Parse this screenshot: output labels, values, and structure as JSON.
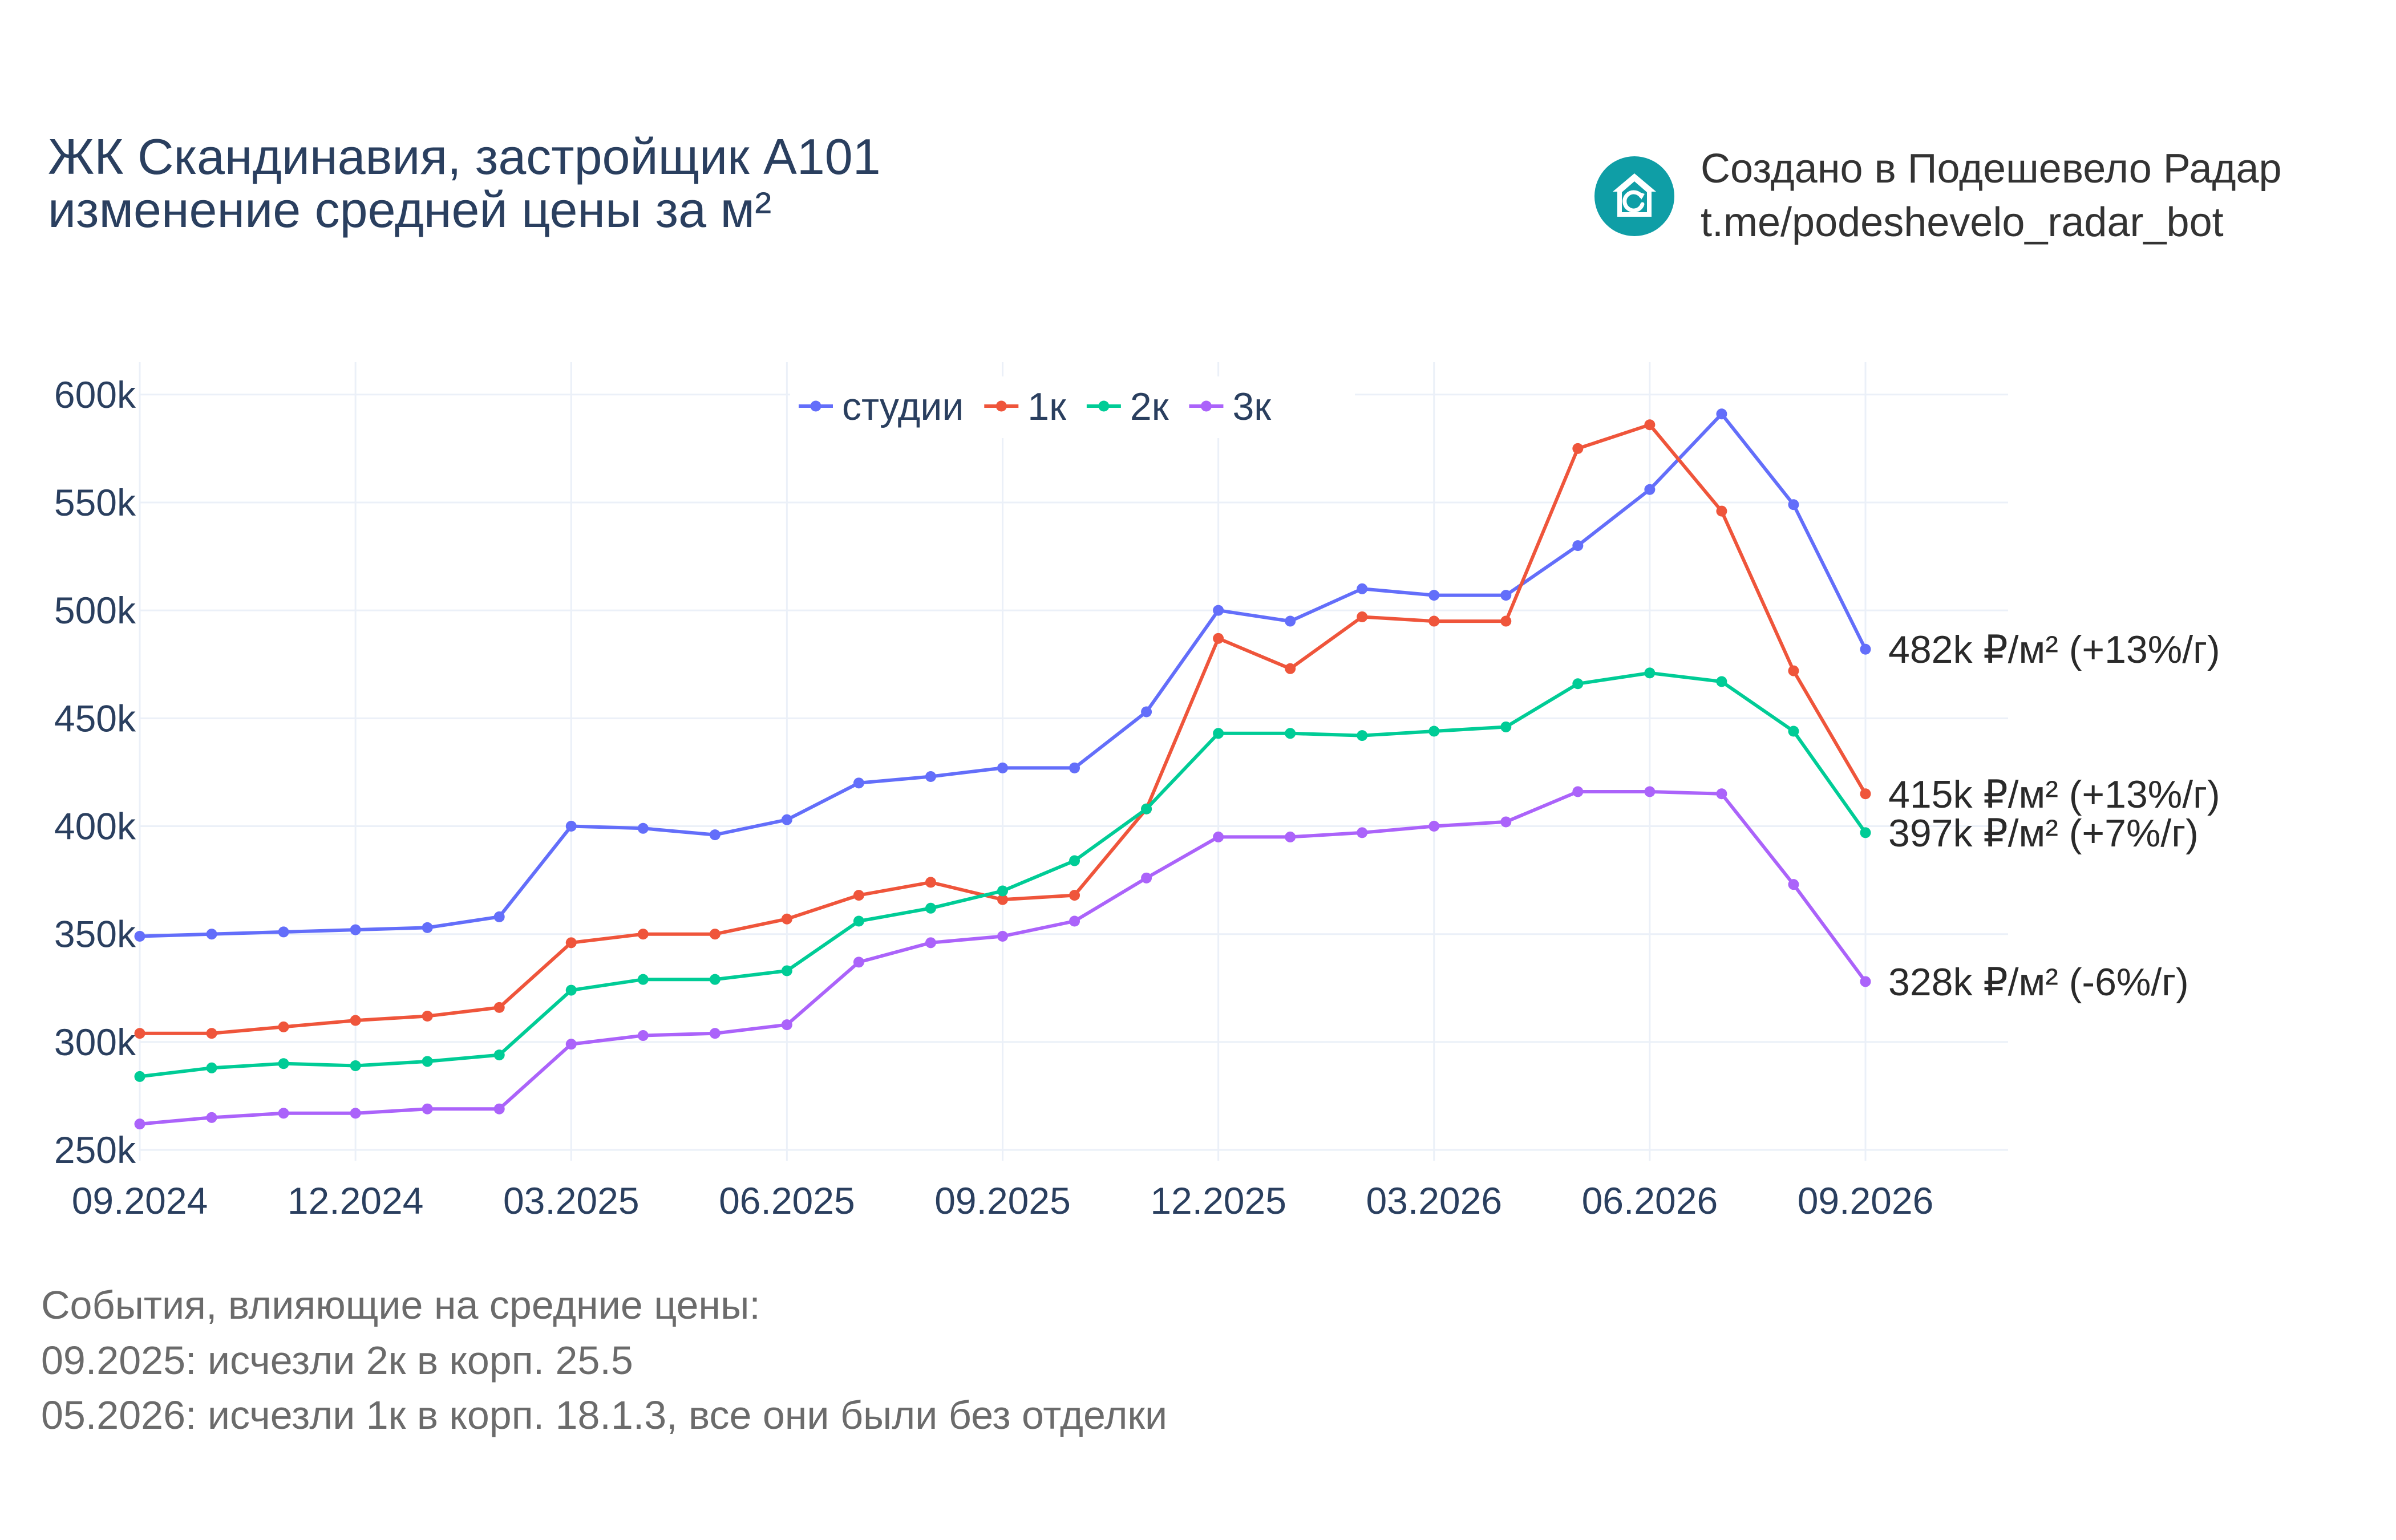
{
  "title": {
    "line1": "ЖК Скандинавия, застройщик А101",
    "line2": "изменение средней цены за м²"
  },
  "brand": {
    "icon": "house-refresh-icon",
    "line1": "Создано в Подешевело Радар",
    "line2": "t.me/podeshevelo_radar_bot",
    "color": "#0f9ea6"
  },
  "notes": {
    "heading": "События, влияющие на средние цены:",
    "items": [
      "09.2025: исчезли 2к в корп. 25.5",
      "05.2026: исчезли 1к в корп. 18.1.3, все они были без отделки"
    ]
  },
  "chart_data": {
    "type": "line",
    "x": [
      "09.2024",
      "10.2024",
      "11.2024",
      "12.2024",
      "01.2025",
      "02.2025",
      "03.2025",
      "04.2025",
      "05.2025",
      "06.2025",
      "07.2025",
      "08.2025",
      "09.2025",
      "10.2025",
      "11.2025",
      "12.2025",
      "01.2026",
      "02.2026",
      "03.2026",
      "04.2026",
      "05.2026",
      "06.2026",
      "07.2026",
      "08.2026",
      "09.2026"
    ],
    "x_ticks": [
      "09.2024",
      "12.2024",
      "03.2025",
      "06.2025",
      "09.2025",
      "12.2025",
      "03.2026",
      "06.2026",
      "09.2026"
    ],
    "y_ticks": [
      "250k",
      "300k",
      "350k",
      "400k",
      "450k",
      "500k",
      "550k",
      "600k"
    ],
    "ylim": [
      245000,
      615000
    ],
    "grid": true,
    "legend_position": "top-center",
    "series": [
      {
        "name": "студии",
        "color": "#636efa",
        "values": [
          349000,
          350000,
          351000,
          352000,
          353000,
          358000,
          400000,
          399000,
          396000,
          403000,
          420000,
          423000,
          427000,
          427000,
          453000,
          500000,
          495000,
          510000,
          507000,
          507000,
          530000,
          556000,
          591000,
          549000,
          482000
        ],
        "end_label": "482k ₽/м² (+13%/г)"
      },
      {
        "name": "1к",
        "color": "#ef553b",
        "values": [
          304000,
          304000,
          307000,
          310000,
          312000,
          316000,
          346000,
          350000,
          350000,
          357000,
          368000,
          374000,
          366000,
          368000,
          408000,
          487000,
          473000,
          497000,
          495000,
          495000,
          575000,
          586000,
          546000,
          472000,
          415000
        ],
        "end_label": "415k ₽/м² (+13%/г)"
      },
      {
        "name": "2к",
        "color": "#00cc96",
        "values": [
          284000,
          288000,
          290000,
          289000,
          291000,
          294000,
          324000,
          329000,
          329000,
          333000,
          356000,
          362000,
          370000,
          384000,
          408000,
          443000,
          443000,
          442000,
          444000,
          446000,
          466000,
          471000,
          467000,
          444000,
          397000
        ],
        "end_label": "397k ₽/м² (+7%/г)"
      },
      {
        "name": "3к",
        "color": "#ab63fa",
        "values": [
          262000,
          265000,
          267000,
          267000,
          269000,
          269000,
          299000,
          303000,
          304000,
          308000,
          337000,
          346000,
          349000,
          356000,
          376000,
          395000,
          395000,
          397000,
          400000,
          402000,
          416000,
          416000,
          415000,
          373000,
          328000
        ],
        "end_label": "328k ₽/м² (-6%/г)"
      }
    ]
  }
}
